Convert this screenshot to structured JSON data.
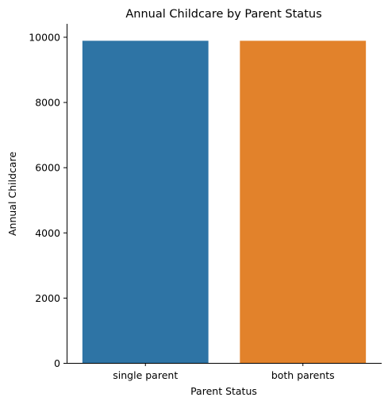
{
  "chart_data": {
    "type": "bar",
    "title": "Annual Childcare by Parent Status",
    "xlabel": "Parent Status",
    "ylabel": "Annual Childcare",
    "categories": [
      "single parent",
      "both parents"
    ],
    "values": [
      9880,
      9880
    ],
    "colors": [
      "#2e74a5",
      "#e2822b"
    ],
    "ylim": [
      0,
      10400
    ],
    "yticks": [
      0,
      2000,
      4000,
      6000,
      8000,
      10000
    ],
    "grid": false,
    "legend": "none"
  }
}
